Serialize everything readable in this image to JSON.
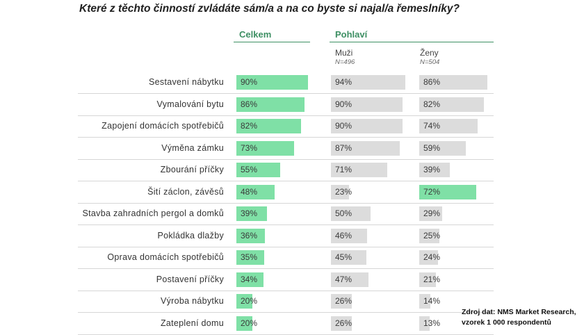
{
  "title": "Které z těchto činností zvládáte sám/a a na co byste si najal/a řemeslníky?",
  "headers": {
    "celkem": "Celkem",
    "pohlavi": "Pohlaví"
  },
  "columns": [
    {
      "key": "total",
      "label": "",
      "n": ""
    },
    {
      "key": "men",
      "label": "Muži",
      "n": "N=496"
    },
    {
      "key": "women",
      "label": "Ženy",
      "n": "N=504"
    }
  ],
  "colors": {
    "green": "#7fe0a6",
    "grey": "#dcdcdc",
    "header_green": "#3d8f63"
  },
  "chart_data": {
    "type": "bar",
    "orientation": "horizontal",
    "title": "Které z těchto činností zvládáte sám/a a na co byste si najal/a řemeslníky?",
    "unit": "%",
    "xlim": [
      0,
      100
    ],
    "categories": [
      "Sestavení nábytku",
      "Vymalování bytu",
      "Zapojení domácích spotřebičů",
      "Výměna zámku",
      "Zbourání příčky",
      "Šití záclon, závěsů",
      "Stavba zahradních pergol a domků",
      "Pokládka dlažby",
      "Oprava domácích spotřebičů",
      "Postavení příčky",
      "Výroba nábytku",
      "Zateplení domu"
    ],
    "series": [
      {
        "name": "Celkem",
        "values": [
          90,
          86,
          82,
          73,
          55,
          48,
          39,
          36,
          35,
          34,
          20,
          20
        ]
      },
      {
        "name": "Muži",
        "values": [
          94,
          90,
          90,
          87,
          71,
          23,
          50,
          46,
          45,
          47,
          26,
          26
        ]
      },
      {
        "name": "Ženy",
        "values": [
          86,
          82,
          74,
          59,
          39,
          72,
          29,
          25,
          24,
          21,
          14,
          13
        ]
      }
    ],
    "highlighted": [
      {
        "series": "Ženy",
        "category": "Šití záclon, závěsů"
      }
    ],
    "legend": "none",
    "grid": false
  },
  "source": {
    "line1": "Zdroj dat: NMS Market Research,",
    "line2": "vzorek 1 000 respondentů"
  }
}
